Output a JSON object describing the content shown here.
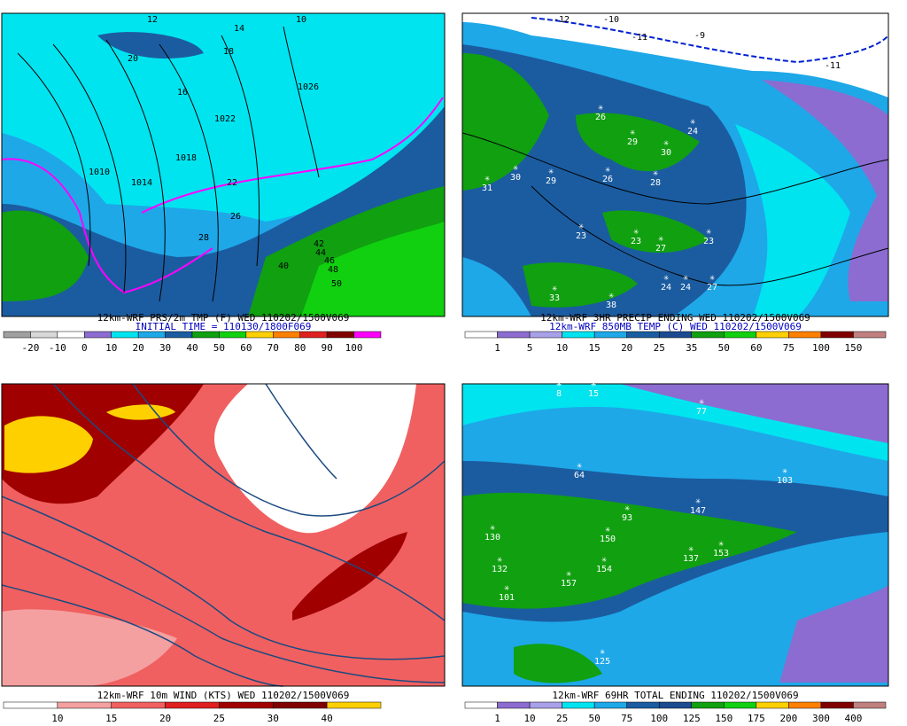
{
  "panels": [
    {
      "caption": [
        "12km-WRF PRS/2m TMP (F) WED 110202/1500V069",
        "INITIAL TIME = 110130/1800F069"
      ],
      "colorbar": {
        "colors": [
          "#a0a0a0",
          "#d8d8d8",
          "#ffffff",
          "#8c6cd0",
          "#00e4f0",
          "#1ea8e8",
          "#1b5ca0",
          "#10a010",
          "#10d010",
          "#ffd000",
          "#ff8000",
          "#e02020",
          "#800000",
          "#ff00ff"
        ],
        "labels": [
          "-20",
          "-10",
          "0",
          "10",
          "20",
          "30",
          "40",
          "50",
          "60",
          "70",
          "80",
          "90",
          "100"
        ]
      },
      "stations": [
        "12",
        "10",
        "14",
        "20",
        "18",
        "16",
        "1026",
        "1022",
        "1018",
        "1014",
        "1010",
        "22",
        "26",
        "28",
        "40",
        "42",
        "44",
        "46",
        "48",
        "50"
      ]
    },
    {
      "caption": [
        "12km-WRF 3HR PRECIP ENDING WED 110202/1500V069",
        "12km-WRF 850MB TEMP (C) WED 110202/1500V069"
      ],
      "colorbar": {
        "colors": [
          "#ffffff",
          "#8c6cd0",
          "#a8a0e8",
          "#00e4f0",
          "#1ea8e8",
          "#1b5ca0",
          "#1c4a90",
          "#10a010",
          "#10d010",
          "#ffd000",
          "#ff8000",
          "#800000",
          "#c08080"
        ],
        "labels": [
          "1",
          "5",
          "10",
          "15",
          "20",
          "25",
          "35",
          "50",
          "60",
          "75",
          "100",
          "150"
        ]
      },
      "stations": [
        "-12",
        "-10",
        "-11",
        "-9",
        "-11",
        "26",
        "29",
        "30",
        "24",
        "31",
        "30",
        "29",
        "26",
        "28",
        "23",
        "23",
        "27",
        "23",
        "24",
        "24",
        "27",
        "33",
        "38"
      ]
    },
    {
      "caption": [
        "12km-WRF 10m WIND (KTS) WED 110202/1500V069"
      ],
      "colorbar": {
        "colors": [
          "#ffffff",
          "#f4a0a0",
          "#f06060",
          "#e02020",
          "#a00000",
          "#800000",
          "#ffd000"
        ],
        "labels": [
          "10",
          "15",
          "20",
          "25",
          "30",
          "40"
        ]
      },
      "stations": []
    },
    {
      "caption": [
        "12km-WRF 69HR TOTAL ENDING 110202/1500V069"
      ],
      "colorbar": {
        "colors": [
          "#ffffff",
          "#8c6cd0",
          "#a8a0e8",
          "#00e4f0",
          "#1ea8e8",
          "#1b5ca0",
          "#1c4a90",
          "#10a010",
          "#10d010",
          "#ffd000",
          "#ff8000",
          "#800000",
          "#c08080"
        ],
        "labels": [
          "1",
          "10",
          "25",
          "50",
          "75",
          "100",
          "125",
          "150",
          "175",
          "200",
          "300",
          "400"
        ]
      },
      "stations": [
        "8",
        "15",
        "77",
        "64",
        "103",
        "93",
        "147",
        "130",
        "150",
        "137",
        "153",
        "132",
        "154",
        "157",
        "101",
        "125"
      ]
    }
  ]
}
